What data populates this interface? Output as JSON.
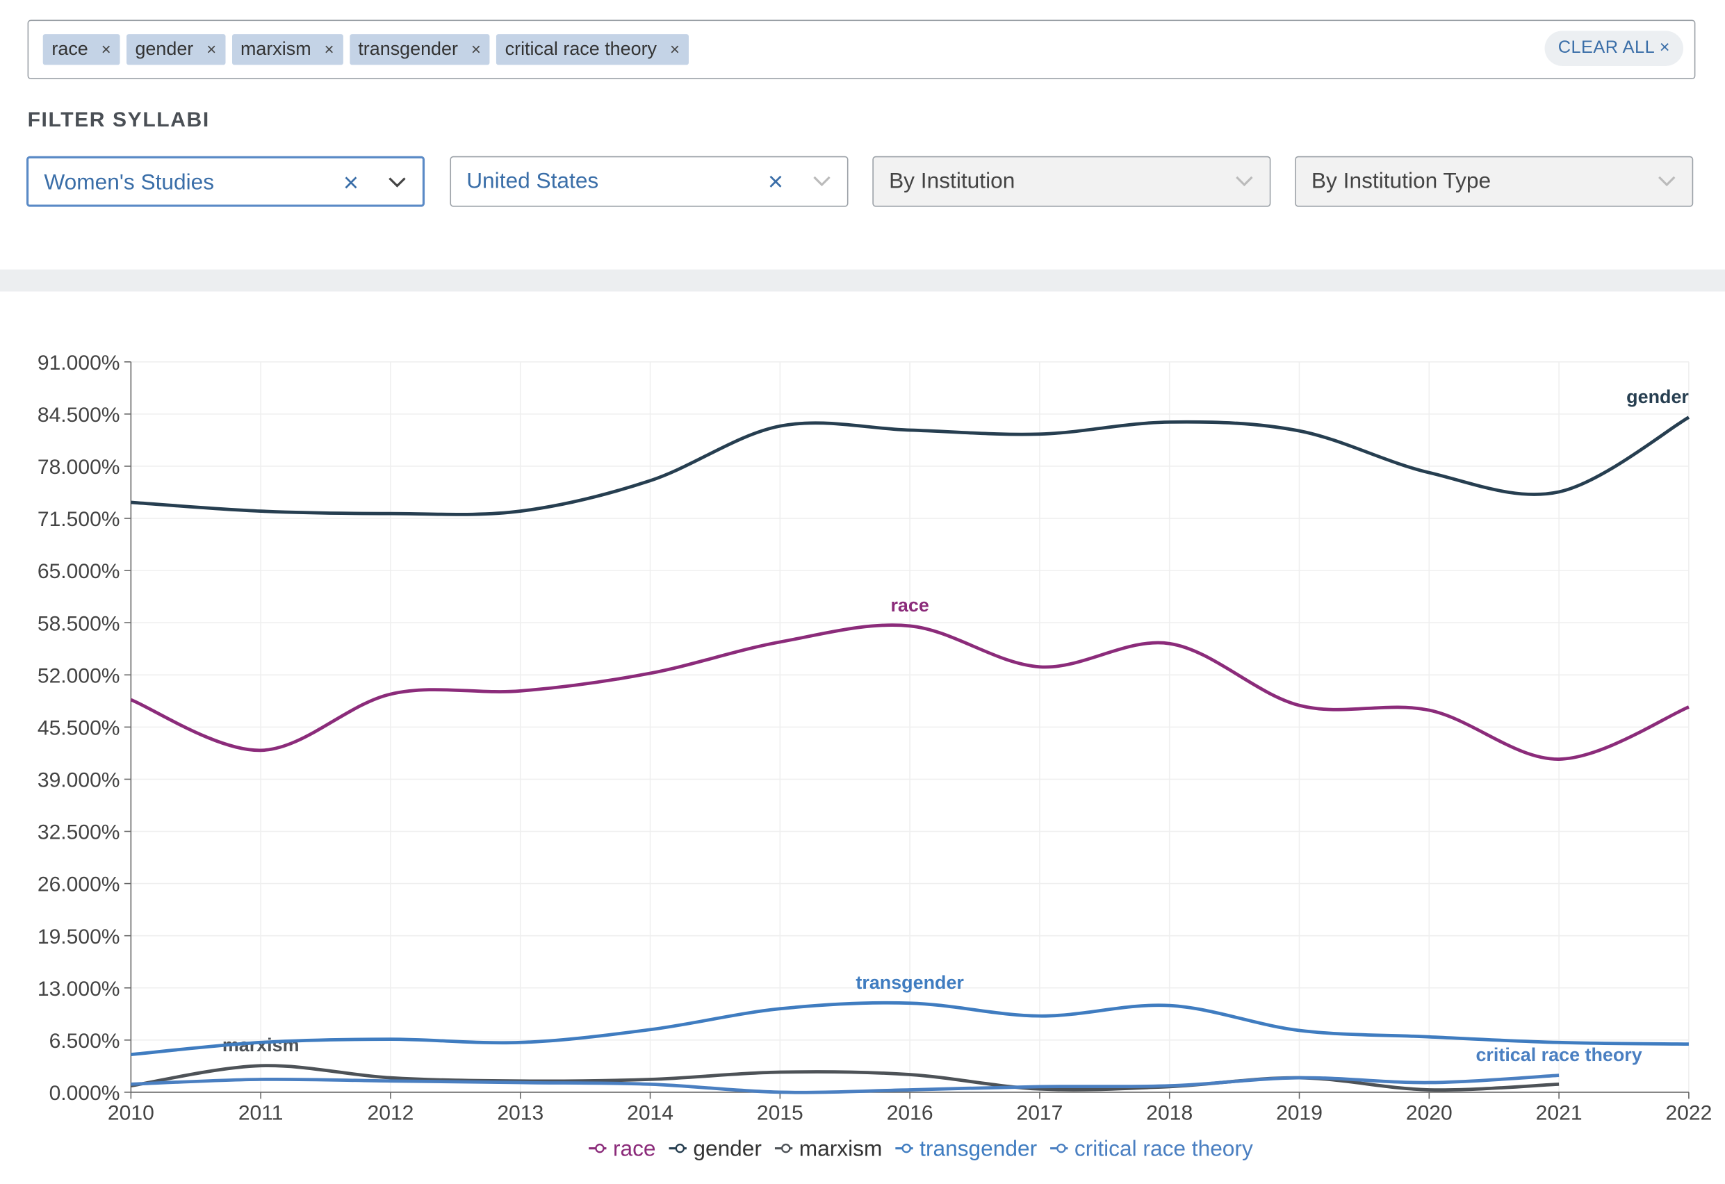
{
  "tags": [
    "race",
    "gender",
    "marxism",
    "transgender",
    "critical race theory"
  ],
  "clear_all": "CLEAR ALL",
  "filter_label": "FILTER SYLLABI",
  "dropdowns": [
    {
      "text": "Women's Studies",
      "selected": true
    },
    {
      "text": "United States",
      "selected": true
    },
    {
      "text": "By Institution",
      "selected": false
    },
    {
      "text": "By Institution Type",
      "selected": false
    }
  ],
  "chart_data": {
    "type": "line",
    "x": [
      2010,
      2011,
      2012,
      2013,
      2014,
      2015,
      2016,
      2017,
      2018,
      2019,
      2020,
      2021,
      2022
    ],
    "xlim": [
      2010,
      2022
    ],
    "xticks": [
      2010,
      2011,
      2012,
      2013,
      2014,
      2015,
      2016,
      2017,
      2018,
      2019,
      2020,
      2021,
      2022
    ],
    "ylim": [
      0,
      91
    ],
    "yticks": [
      {
        "value": 0,
        "label": "0.000%"
      },
      {
        "value": 6.5,
        "label": "6.500%"
      },
      {
        "value": 13,
        "label": "13.000%"
      },
      {
        "value": 19.5,
        "label": "19.500%"
      },
      {
        "value": 26,
        "label": "26.000%"
      },
      {
        "value": 32.5,
        "label": "32.500%"
      },
      {
        "value": 39,
        "label": "39.000%"
      },
      {
        "value": 45.5,
        "label": "45.500%"
      },
      {
        "value": 52,
        "label": "52.000%"
      },
      {
        "value": 58.5,
        "label": "58.500%"
      },
      {
        "value": 65,
        "label": "65.000%"
      },
      {
        "value": 71.5,
        "label": "71.500%"
      },
      {
        "value": 78,
        "label": "78.000%"
      },
      {
        "value": 84.5,
        "label": "84.500%"
      },
      {
        "value": 91,
        "label": "91.000%"
      }
    ],
    "grid": true,
    "series": [
      {
        "name": "race",
        "color": "#8b2b7a",
        "values": [
          48.9,
          42.6,
          49.6,
          50.0,
          52.2,
          56.1,
          58.1,
          53.0,
          55.9,
          48.2,
          47.6,
          41.5,
          48.0
        ]
      },
      {
        "name": "gender",
        "color": "#263e50",
        "values": [
          73.5,
          72.4,
          72.1,
          72.4,
          76.2,
          83.0,
          82.5,
          82.0,
          83.5,
          82.4,
          77.2,
          74.8,
          84.1
        ]
      },
      {
        "name": "marxism",
        "color": "#4d5257",
        "values": [
          0.8,
          3.3,
          1.8,
          1.4,
          1.6,
          2.5,
          2.2,
          0.4,
          0.7,
          1.8,
          0.3,
          1.0,
          null
        ]
      },
      {
        "name": "transgender",
        "color": "#3f7cc0",
        "values": [
          4.7,
          6.2,
          6.6,
          6.2,
          7.8,
          10.4,
          11.1,
          9.5,
          10.8,
          7.7,
          6.9,
          6.2,
          6.0
        ]
      },
      {
        "name": "critical race theory",
        "color": "#4a7fc1",
        "values": [
          1.0,
          1.6,
          1.4,
          1.2,
          1.0,
          0.0,
          0.3,
          0.7,
          0.8,
          1.8,
          1.2,
          2.1,
          null
        ]
      }
    ]
  }
}
